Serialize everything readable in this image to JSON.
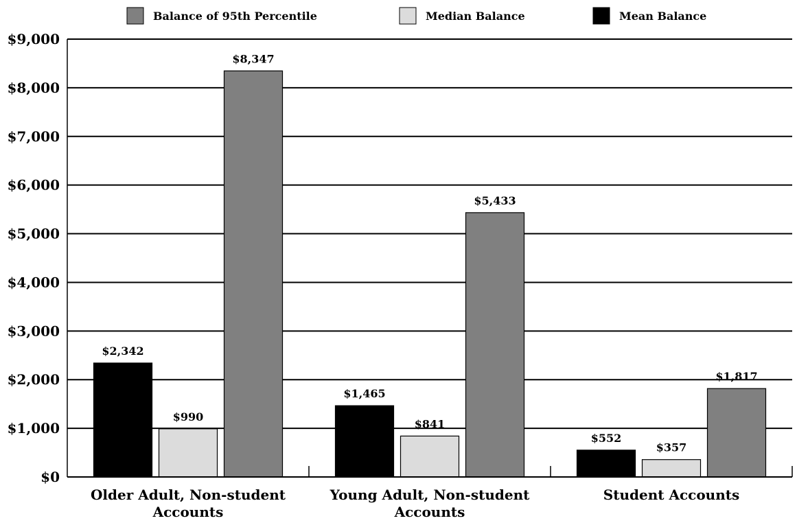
{
  "chart_data": {
    "type": "bar",
    "categories": [
      [
        "Older Adult, Non-student",
        "Accounts"
      ],
      [
        "Young Adult, Non-student",
        "Accounts"
      ],
      [
        "Student Accounts"
      ]
    ],
    "series": [
      {
        "name": "Mean Balance",
        "color": "#000000",
        "values": [
          2342,
          1465,
          552
        ],
        "labels": [
          "$2,342",
          "$1,465",
          "$552"
        ]
      },
      {
        "name": "Median Balance",
        "color": "#dcdcdc",
        "values": [
          990,
          841,
          357
        ],
        "labels": [
          "$990",
          "$841",
          "$357"
        ]
      },
      {
        "name": "Balance of 95th Percentile",
        "color": "#808080",
        "values": [
          8347,
          5433,
          1817
        ],
        "labels": [
          "$8,347",
          "$5,433",
          "$1,817"
        ]
      }
    ],
    "legend_order": [
      2,
      1,
      0
    ],
    "legend_position": "top",
    "ylim": [
      0,
      9000
    ],
    "yticks": [
      0,
      1000,
      2000,
      3000,
      4000,
      5000,
      6000,
      7000,
      8000,
      9000
    ],
    "ytick_labels": [
      "$0",
      "$1,000",
      "$2,000",
      "$3,000",
      "$4,000",
      "$5,000",
      "$6,000",
      "$7,000",
      "$8,000",
      "$9,000"
    ],
    "grid": true,
    "title": "",
    "xlabel": "",
    "ylabel": ""
  }
}
